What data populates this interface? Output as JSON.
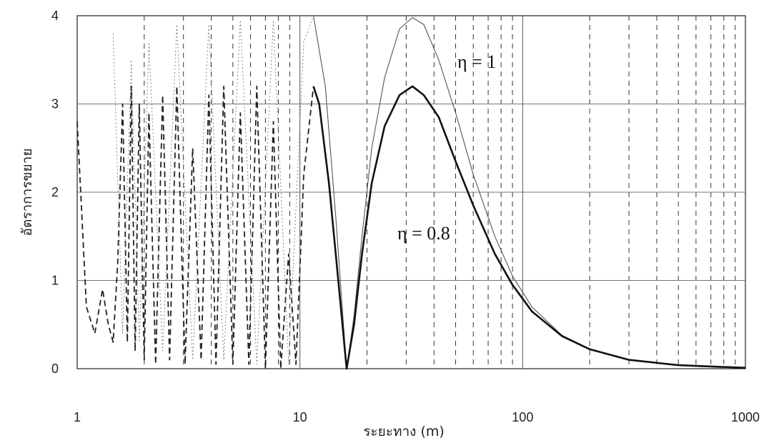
{
  "chart_data": {
    "type": "line",
    "title": "",
    "xlabel": "ระยะทาง (m)",
    "ylabel": "อัตราการขยาย",
    "x_scale": "log",
    "xlim": [
      1,
      1000
    ],
    "ylim": [
      0,
      4
    ],
    "x_ticks": [
      "1",
      "10",
      "100",
      "1000"
    ],
    "y_ticks": [
      "0",
      "1",
      "2",
      "3",
      "4"
    ],
    "grid": true,
    "annotations": [
      "η = 1",
      "η = 0.8"
    ],
    "series": [
      {
        "name": "η = 1",
        "style": "thin-solid",
        "color": "#555555",
        "x": [
          11.5,
          13,
          14.5,
          16.2,
          17.5,
          19,
          21,
          24,
          28,
          32,
          36,
          42,
          50,
          60,
          75,
          90,
          110,
          150,
          200,
          300,
          500,
          1000
        ],
        "y": [
          4.0,
          3.2,
          1.7,
          0.0,
          0.6,
          1.5,
          2.5,
          3.3,
          3.85,
          3.98,
          3.9,
          3.5,
          2.9,
          2.2,
          1.5,
          1.05,
          0.7,
          0.38,
          0.22,
          0.1,
          0.04,
          0.01
        ]
      },
      {
        "name": "η = 0.8",
        "style": "thick-solid",
        "color": "#111111",
        "x": [
          11.5,
          12.2,
          13.5,
          15,
          16.2,
          17.5,
          19,
          21,
          24,
          28,
          32,
          36,
          42,
          50,
          60,
          75,
          90,
          110,
          150,
          200,
          300,
          500,
          1000
        ],
        "y": [
          3.2,
          3.0,
          2.1,
          0.9,
          0.0,
          0.5,
          1.3,
          2.1,
          2.75,
          3.1,
          3.2,
          3.1,
          2.85,
          2.35,
          1.85,
          1.3,
          0.95,
          0.65,
          0.37,
          0.22,
          0.1,
          0.04,
          0.01
        ]
      },
      {
        "name": "",
        "style": "dashed",
        "color": "#222222",
        "x": [
          1.0,
          1.1,
          1.2,
          1.3,
          1.38,
          1.45,
          1.52,
          1.6,
          1.68,
          1.75,
          1.82,
          1.9,
          2.0,
          2.1,
          2.25,
          2.42,
          2.6,
          2.8,
          3.05,
          3.3,
          3.6,
          3.9,
          4.2,
          4.55,
          5.0,
          5.4,
          5.9,
          6.4,
          7.0,
          7.6,
          8.2,
          8.9,
          9.6,
          10.4,
          11.5
        ],
        "y": [
          2.8,
          0.7,
          0.4,
          0.9,
          0.5,
          0.3,
          1.2,
          3.0,
          0.3,
          3.2,
          0.2,
          3.0,
          0.1,
          2.9,
          0.05,
          3.1,
          0.1,
          3.2,
          0.05,
          2.5,
          0.1,
          3.1,
          0.05,
          3.2,
          0.05,
          2.9,
          0.05,
          3.2,
          0.0,
          2.8,
          0.0,
          1.3,
          0.05,
          2.2,
          3.2
        ]
      },
      {
        "name": "",
        "style": "thin-dotted",
        "color": "#777777",
        "x": [
          1.45,
          1.6,
          1.75,
          1.9,
          2.1,
          2.42,
          2.8,
          3.3,
          3.9,
          4.55,
          5.4,
          6.4,
          7.6,
          8.9,
          10.4,
          11.5
        ],
        "y": [
          3.8,
          0.4,
          3.5,
          0.3,
          3.7,
          0.2,
          3.9,
          0.1,
          3.9,
          0.1,
          3.95,
          0.05,
          3.95,
          0.05,
          3.7,
          4.0
        ]
      }
    ]
  }
}
